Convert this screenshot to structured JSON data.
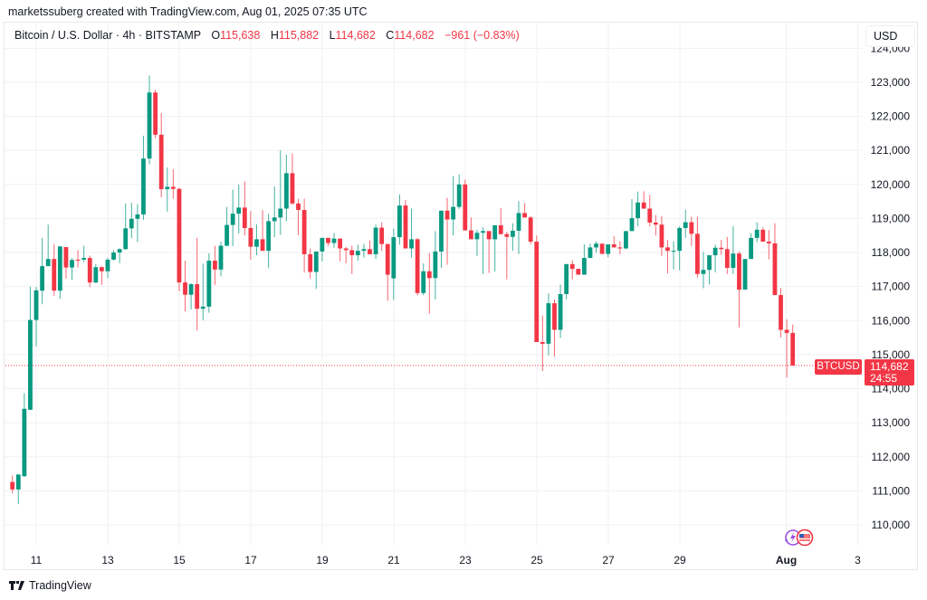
{
  "credit": "marketssuberg created with TradingView.com, Aug 01, 2025 07:35 UTC",
  "legend": {
    "symbol": "Bitcoin / U.S. Dollar · 4h · BITSTAMP",
    "o_label": "O",
    "o_value": "115,638",
    "h_label": "H",
    "h_value": "115,882",
    "l_label": "L",
    "l_value": "114,682",
    "c_label": "C",
    "c_value": "114,682",
    "change": "−961 (−0.83%)"
  },
  "currency_button": "USD",
  "price_marker": {
    "symbol": "BTCUSD",
    "price": "114,682",
    "countdown": "24:55"
  },
  "footer": {
    "brand": "TradingView"
  },
  "event_icons": [
    "lightning-icon",
    "us-flag-icon"
  ],
  "colors": {
    "up": "#089981",
    "down": "#f23645",
    "grid": "#f0f1f3",
    "text": "#131722"
  },
  "chart_data": {
    "type": "candlestick",
    "title": "",
    "interval": "4h",
    "grid": true,
    "ylim": [
      109500,
      124000
    ],
    "y_ticks": [
      "124,000",
      "123,000",
      "122,000",
      "121,000",
      "120,000",
      "119,000",
      "118,000",
      "117,000",
      "116,000",
      "115,000",
      "114,000",
      "113,000",
      "112,000",
      "111,000",
      "110,000"
    ],
    "y_tick_values": [
      124000,
      123000,
      122000,
      121000,
      120000,
      119000,
      118000,
      117000,
      116000,
      115000,
      114000,
      113000,
      112000,
      111000,
      110000
    ],
    "x_ticks": [
      "11",
      "13",
      "15",
      "17",
      "19",
      "21",
      "23",
      "25",
      "27",
      "29",
      "Aug",
      "3"
    ],
    "last_price": 114682,
    "candles_ohlc": [
      [
        111260,
        111450,
        110920,
        111040
      ],
      [
        111040,
        111480,
        110610,
        111480
      ],
      [
        111430,
        113870,
        111410,
        113410
      ],
      [
        113380,
        116990,
        113380,
        116020
      ],
      [
        116020,
        116990,
        115240,
        116890
      ],
      [
        116880,
        118430,
        116480,
        117600
      ],
      [
        117600,
        118820,
        117600,
        117810
      ],
      [
        117810,
        118250,
        116730,
        116880
      ],
      [
        116880,
        118180,
        116640,
        118180
      ],
      [
        118160,
        118160,
        117230,
        117560
      ],
      [
        117560,
        117840,
        117200,
        117780
      ],
      [
        117790,
        118070,
        117560,
        117770
      ],
      [
        117790,
        118200,
        117720,
        117840
      ],
      [
        117840,
        117910,
        116980,
        117120
      ],
      [
        117120,
        117660,
        117100,
        117570
      ],
      [
        117570,
        117590,
        117050,
        117450
      ],
      [
        117450,
        117850,
        117250,
        117790
      ],
      [
        117790,
        118070,
        117770,
        118000
      ],
      [
        118000,
        118120,
        117690,
        118100
      ],
      [
        118100,
        119440,
        118080,
        118710
      ],
      [
        118710,
        119460,
        118420,
        118990
      ],
      [
        118990,
        119420,
        118310,
        119120
      ],
      [
        119120,
        121430,
        118960,
        120760
      ],
      [
        120760,
        123200,
        120590,
        122700
      ],
      [
        122700,
        122780,
        121360,
        121460
      ],
      [
        121460,
        122100,
        119620,
        119860
      ],
      [
        119860,
        120500,
        119200,
        119930
      ],
      [
        119930,
        120450,
        119580,
        119870
      ],
      [
        119870,
        119900,
        116860,
        117120
      ],
      [
        117120,
        117760,
        116270,
        116760
      ],
      [
        116760,
        117100,
        116330,
        117070
      ],
      [
        117070,
        118430,
        115710,
        116350
      ],
      [
        116350,
        117670,
        116010,
        116410
      ],
      [
        116410,
        117980,
        116230,
        117760
      ],
      [
        117760,
        118200,
        117050,
        117500
      ],
      [
        117500,
        118320,
        117300,
        118200
      ],
      [
        118200,
        119340,
        118180,
        118810
      ],
      [
        118810,
        119850,
        118190,
        119140
      ],
      [
        119140,
        120000,
        118560,
        119320
      ],
      [
        119320,
        120090,
        118500,
        118720
      ],
      [
        118720,
        119220,
        117790,
        118170
      ],
      [
        118170,
        118830,
        117920,
        118390
      ],
      [
        118390,
        119250,
        118050,
        118050
      ],
      [
        118050,
        119140,
        117540,
        118920
      ],
      [
        118920,
        119940,
        118450,
        119030
      ],
      [
        119030,
        121000,
        118520,
        119290
      ],
      [
        119290,
        120870,
        118920,
        120330
      ],
      [
        120330,
        120910,
        119410,
        119440
      ],
      [
        119440,
        119580,
        118510,
        119250
      ],
      [
        119250,
        119580,
        117410,
        117950
      ],
      [
        117950,
        118120,
        117240,
        117430
      ],
      [
        117430,
        118030,
        116930,
        118030
      ],
      [
        118030,
        118430,
        117740,
        118430
      ],
      [
        118430,
        118430,
        118190,
        118280
      ],
      [
        118280,
        118570,
        118140,
        118410
      ],
      [
        118410,
        118410,
        117740,
        118120
      ],
      [
        118120,
        118160,
        117680,
        118070
      ],
      [
        118070,
        118200,
        117370,
        117920
      ],
      [
        117920,
        118230,
        117760,
        118050
      ],
      [
        118050,
        118250,
        117850,
        118100
      ],
      [
        118100,
        118350,
        117950,
        117950
      ],
      [
        117950,
        118820,
        117810,
        118730
      ],
      [
        118730,
        118890,
        118050,
        118250
      ],
      [
        118250,
        118250,
        116580,
        117350
      ],
      [
        117240,
        118700,
        116610,
        118450
      ],
      [
        118450,
        119710,
        118230,
        119380
      ],
      [
        119380,
        119540,
        118120,
        118120
      ],
      [
        118120,
        119290,
        117850,
        118390
      ],
      [
        118390,
        118430,
        116740,
        116810
      ],
      [
        116810,
        117680,
        116750,
        117450
      ],
      [
        117450,
        117980,
        116200,
        117250
      ],
      [
        117250,
        118630,
        116620,
        118030
      ],
      [
        118030,
        119230,
        117550,
        119230
      ],
      [
        119230,
        119610,
        117640,
        118970
      ],
      [
        118970,
        120250,
        118500,
        119340
      ],
      [
        119340,
        120290,
        119280,
        120000
      ],
      [
        120000,
        120140,
        118650,
        118650
      ],
      [
        118650,
        119030,
        118390,
        118390
      ],
      [
        118390,
        118670,
        117900,
        118580
      ],
      [
        118580,
        118740,
        117370,
        118630
      ],
      [
        118630,
        118630,
        117400,
        118390
      ],
      [
        118390,
        118800,
        117440,
        118800
      ],
      [
        118800,
        119300,
        118540,
        118540
      ],
      [
        118540,
        118610,
        117210,
        118460
      ],
      [
        118460,
        118860,
        118050,
        118640
      ],
      [
        118640,
        119510,
        117950,
        119160
      ],
      [
        119160,
        119450,
        119030,
        119030
      ],
      [
        119030,
        119070,
        118240,
        118320
      ],
      [
        118320,
        118500,
        115370,
        115370
      ],
      [
        115370,
        116150,
        114520,
        115320
      ],
      [
        115320,
        116800,
        114980,
        116510
      ],
      [
        116510,
        116620,
        114940,
        115730
      ],
      [
        115730,
        117060,
        115490,
        116780
      ],
      [
        116780,
        117660,
        116620,
        117660
      ],
      [
        117660,
        117770,
        117210,
        117520
      ],
      [
        117520,
        117520,
        117350,
        117350
      ],
      [
        117350,
        118240,
        117350,
        117840
      ],
      [
        117840,
        118260,
        117840,
        118150
      ],
      [
        118150,
        118330,
        118000,
        118260
      ],
      [
        118260,
        118260,
        117960,
        117960
      ],
      [
        117960,
        118240,
        117860,
        118240
      ],
      [
        118240,
        118480,
        118150,
        118150
      ],
      [
        118150,
        118330,
        117950,
        118120
      ],
      [
        118120,
        118630,
        118100,
        118630
      ],
      [
        118630,
        119570,
        118630,
        119010
      ],
      [
        119010,
        119790,
        118770,
        119470
      ],
      [
        119470,
        119800,
        119290,
        119290
      ],
      [
        119290,
        119690,
        118770,
        118880
      ],
      [
        118880,
        119100,
        118500,
        118820
      ],
      [
        118820,
        119070,
        117900,
        118150
      ],
      [
        118150,
        118370,
        117390,
        118050
      ],
      [
        118050,
        118330,
        117500,
        118050
      ],
      [
        118050,
        118770,
        117480,
        118720
      ],
      [
        118720,
        119260,
        118430,
        118890
      ],
      [
        118890,
        119050,
        118190,
        118550
      ],
      [
        118550,
        119050,
        117260,
        117370
      ],
      [
        117370,
        118020,
        116950,
        117490
      ],
      [
        117490,
        117920,
        117060,
        117920
      ],
      [
        117920,
        118230,
        117420,
        118140
      ],
      [
        118140,
        118370,
        117930,
        118100
      ],
      [
        118100,
        118460,
        117370,
        117550
      ],
      [
        117550,
        118770,
        117370,
        117970
      ],
      [
        117970,
        118040,
        115800,
        116910
      ],
      [
        116910,
        117810,
        116910,
        117810
      ],
      [
        117810,
        118570,
        117810,
        118430
      ],
      [
        118430,
        118890,
        118300,
        118670
      ],
      [
        118670,
        118740,
        118320,
        118320
      ],
      [
        118320,
        118660,
        117800,
        118270
      ],
      [
        118270,
        118860,
        116750,
        116750
      ],
      [
        116750,
        116960,
        115510,
        115730
      ],
      [
        115730,
        116040,
        114320,
        115640
      ],
      [
        115638,
        115882,
        114682,
        114682
      ]
    ]
  }
}
